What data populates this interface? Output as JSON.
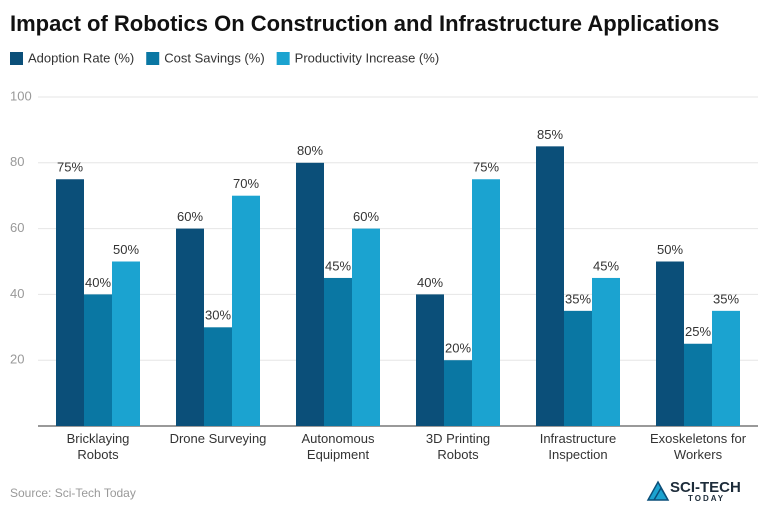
{
  "chart_data": {
    "type": "bar",
    "title": "Impact of Robotics On Construction and Infrastructure Applications",
    "categories": [
      "Bricklaying Robots",
      "Drone Surveying",
      "Autonomous Equipment",
      "3D Printing Robots",
      "Infrastructure Inspection",
      "Exoskeletons for Workers"
    ],
    "series": [
      {
        "name": "Adoption Rate (%)",
        "color": "#0b4f79",
        "values": [
          75,
          60,
          80,
          40,
          85,
          50
        ],
        "value_labels": [
          "75%",
          "60%",
          "80%",
          "40%",
          "85%",
          "50%"
        ]
      },
      {
        "name": "Cost Savings (%)",
        "color": "#0a77a3",
        "values": [
          40,
          30,
          45,
          20,
          35,
          25
        ],
        "value_labels": [
          "40%",
          "30%",
          "45%",
          "20%",
          "35%",
          "25%"
        ]
      },
      {
        "name": "Productivity Increase (%)",
        "color": "#1ba3d0",
        "values": [
          50,
          70,
          60,
          75,
          45,
          35
        ],
        "value_labels": [
          "50%",
          "70%",
          "60%",
          "75%",
          "45%",
          "35%"
        ]
      }
    ],
    "ylim": [
      0,
      100
    ],
    "yticks": [
      20,
      40,
      60,
      80,
      100
    ],
    "grid": true,
    "source": "Source: Sci-Tech Today",
    "logo": [
      "SCI-TECH",
      "TODAY"
    ]
  }
}
